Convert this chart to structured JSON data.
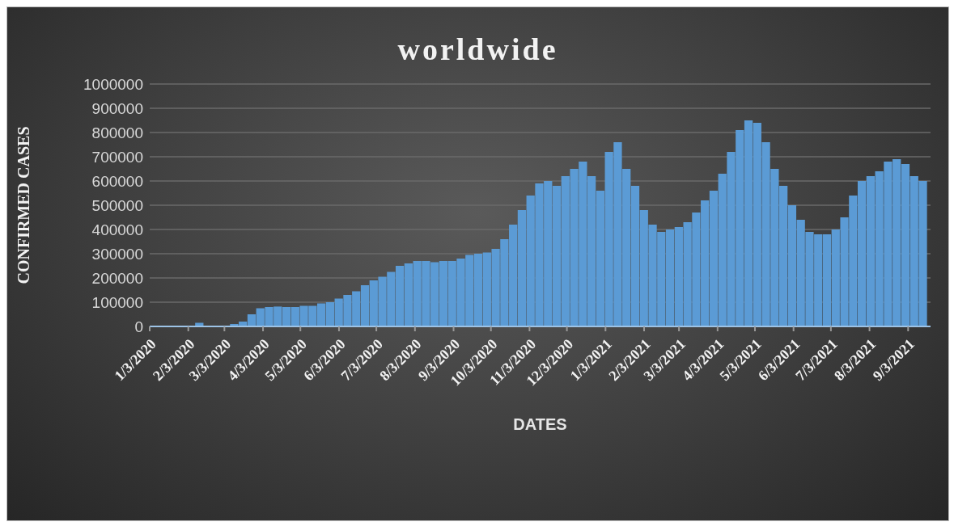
{
  "chart_data": {
    "type": "bar",
    "title": "worldwide",
    "xlabel": "DATES",
    "ylabel": "CONFIRMED CASES",
    "color": "#5b9bd5",
    "grid": "y",
    "xlim": [
      "2020-01-03",
      "2021-09-21"
    ],
    "xticks": [
      {
        "value": "2020-01-03",
        "label": "1/3/2020"
      },
      {
        "value": "2020-02-03",
        "label": "2/3/2020"
      },
      {
        "value": "2020-03-03",
        "label": "3/3/2020"
      },
      {
        "value": "2020-04-03",
        "label": "4/3/2020"
      },
      {
        "value": "2020-05-03",
        "label": "5/3/2020"
      },
      {
        "value": "2020-06-03",
        "label": "6/3/2020"
      },
      {
        "value": "2020-07-03",
        "label": "7/3/2020"
      },
      {
        "value": "2020-08-03",
        "label": "8/3/2020"
      },
      {
        "value": "2020-09-03",
        "label": "9/3/2020"
      },
      {
        "value": "2020-10-03",
        "label": "10/3/2020"
      },
      {
        "value": "2020-11-03",
        "label": "11/3/2020"
      },
      {
        "value": "2020-12-03",
        "label": "12/3/2020"
      },
      {
        "value": "2021-01-03",
        "label": "1/3/2021"
      },
      {
        "value": "2021-02-03",
        "label": "2/3/2021"
      },
      {
        "value": "2021-03-03",
        "label": "3/3/2021"
      },
      {
        "value": "2021-04-03",
        "label": "4/3/2021"
      },
      {
        "value": "2021-05-03",
        "label": "5/3/2021"
      },
      {
        "value": "2021-06-03",
        "label": "6/3/2021"
      },
      {
        "value": "2021-07-03",
        "label": "7/3/2021"
      },
      {
        "value": "2021-08-03",
        "label": "8/3/2021"
      },
      {
        "value": "2021-09-03",
        "label": "9/3/2021"
      }
    ],
    "ylim": [
      0,
      1000000
    ],
    "yticks": [
      0,
      100000,
      200000,
      300000,
      400000,
      500000,
      600000,
      700000,
      800000,
      900000,
      1000000
    ],
    "x": [
      "2020-01-22",
      "2020-01-29",
      "2020-02-05",
      "2020-02-12",
      "2020-02-19",
      "2020-02-26",
      "2020-03-04",
      "2020-03-11",
      "2020-03-18",
      "2020-03-25",
      "2020-04-01",
      "2020-04-08",
      "2020-04-15",
      "2020-04-22",
      "2020-04-29",
      "2020-05-06",
      "2020-05-13",
      "2020-05-20",
      "2020-05-27",
      "2020-06-03",
      "2020-06-10",
      "2020-06-17",
      "2020-06-24",
      "2020-07-01",
      "2020-07-08",
      "2020-07-15",
      "2020-07-22",
      "2020-07-29",
      "2020-08-05",
      "2020-08-12",
      "2020-08-19",
      "2020-08-26",
      "2020-09-02",
      "2020-09-09",
      "2020-09-16",
      "2020-09-23",
      "2020-09-30",
      "2020-10-07",
      "2020-10-14",
      "2020-10-21",
      "2020-10-28",
      "2020-11-04",
      "2020-11-11",
      "2020-11-18",
      "2020-11-25",
      "2020-12-02",
      "2020-12-09",
      "2020-12-16",
      "2020-12-23",
      "2020-12-30",
      "2021-01-06",
      "2021-01-13",
      "2021-01-20",
      "2021-01-27",
      "2021-02-03",
      "2021-02-10",
      "2021-02-17",
      "2021-02-24",
      "2021-03-03",
      "2021-03-10",
      "2021-03-17",
      "2021-03-24",
      "2021-03-31",
      "2021-04-07",
      "2021-04-14",
      "2021-04-21",
      "2021-04-28",
      "2021-05-05",
      "2021-05-12",
      "2021-05-19",
      "2021-05-26",
      "2021-06-02",
      "2021-06-09",
      "2021-06-16",
      "2021-06-23",
      "2021-06-30",
      "2021-07-07",
      "2021-07-14",
      "2021-07-21",
      "2021-07-28",
      "2021-08-04",
      "2021-08-11",
      "2021-08-18",
      "2021-08-25",
      "2021-09-01",
      "2021-09-08",
      "2021-09-15"
    ],
    "values": [
      1000,
      2000,
      3000,
      15000,
      1000,
      2000,
      3000,
      10000,
      20000,
      50000,
      75000,
      80000,
      82000,
      80000,
      80000,
      85000,
      85000,
      95000,
      100000,
      115000,
      130000,
      145000,
      170000,
      190000,
      205000,
      225000,
      250000,
      260000,
      270000,
      270000,
      265000,
      270000,
      270000,
      280000,
      295000,
      300000,
      305000,
      320000,
      360000,
      420000,
      480000,
      540000,
      590000,
      600000,
      580000,
      620000,
      650000,
      680000,
      620000,
      560000,
      720000,
      760000,
      650000,
      580000,
      480000,
      420000,
      390000,
      400000,
      410000,
      430000,
      470000,
      520000,
      560000,
      630000,
      720000,
      810000,
      850000,
      840000,
      760000,
      650000,
      580000,
      500000,
      440000,
      390000,
      380000,
      380000,
      400000,
      450000,
      540000,
      600000,
      620000,
      640000,
      680000,
      690000,
      670000,
      620000,
      600000
    ]
  }
}
